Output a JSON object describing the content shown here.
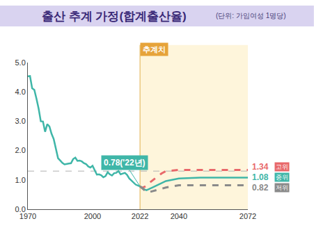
{
  "chart_data": {
    "type": "line",
    "title": "출산 추계 가정(합계출산율)",
    "subtitle": "(단위: 가임여성 1명당)",
    "xlim": [
      1970,
      2072
    ],
    "xticks": [
      1970,
      2000,
      2022,
      2040,
      2072
    ],
    "ylim": [
      0,
      5
    ],
    "yticks": [
      {
        "value": 0,
        "label": "0.0"
      },
      {
        "value": 1,
        "label": "1.0"
      },
      {
        "value": 2,
        "label": "2.0"
      },
      {
        "value": 3,
        "label": "3.0"
      },
      {
        "value": 4,
        "label": "4.0"
      },
      {
        "value": 5,
        "label": "5.0"
      }
    ],
    "grid": false,
    "projection": {
      "label": "추계치",
      "start": 2022
    },
    "reference_lines": [
      1.3
    ],
    "annotations": [
      {
        "x": 2022,
        "y": 0.78,
        "text": "0.78('22년)"
      }
    ],
    "series": [
      {
        "color": "#3fb6a8",
        "line_style": "solid",
        "x": [
          1970,
          1971,
          1972,
          1973,
          1974,
          1975,
          1976,
          1977,
          1978,
          1979,
          1980,
          1981,
          1982,
          1983,
          1984,
          1985,
          1986,
          1987,
          1988,
          1989,
          1990,
          1991,
          1992,
          1993,
          1994,
          1995,
          1996,
          1997,
          1998,
          1999,
          2000,
          2001,
          2002,
          2003,
          2004,
          2005,
          2006,
          2007,
          2008,
          2009,
          2010,
          2011,
          2012,
          2013,
          2014,
          2015,
          2016,
          2017,
          2018,
          2019,
          2020,
          2021,
          2022
        ],
        "values": [
          4.53,
          4.54,
          4.12,
          4.07,
          3.77,
          3.43,
          3.0,
          2.99,
          2.64,
          2.9,
          2.82,
          2.57,
          2.39,
          2.06,
          1.74,
          1.66,
          1.58,
          1.53,
          1.55,
          1.56,
          1.57,
          1.71,
          1.76,
          1.65,
          1.66,
          1.63,
          1.57,
          1.54,
          1.46,
          1.42,
          1.48,
          1.31,
          1.18,
          1.19,
          1.16,
          1.09,
          1.13,
          1.26,
          1.19,
          1.15,
          1.23,
          1.24,
          1.3,
          1.19,
          1.21,
          1.24,
          1.17,
          1.05,
          0.98,
          0.92,
          0.84,
          0.81,
          0.78
        ]
      },
      {
        "name": "고위",
        "end_label": "1.34",
        "color": "#e8686a",
        "line_style": "dashed",
        "x": [
          2022,
          2023,
          2024,
          2025,
          2026,
          2028,
          2030,
          2032,
          2034,
          2040,
          2050,
          2060,
          2072
        ],
        "values": [
          0.78,
          0.73,
          0.76,
          0.8,
          0.88,
          1.0,
          1.12,
          1.22,
          1.3,
          1.34,
          1.34,
          1.34,
          1.34
        ]
      },
      {
        "name": "중위",
        "end_label": "1.08",
        "color": "#3fb6a8",
        "line_style": "solid",
        "x": [
          2022,
          2023,
          2024,
          2025,
          2026,
          2028,
          2030,
          2032,
          2034,
          2040,
          2050,
          2060,
          2072
        ],
        "values": [
          0.78,
          0.72,
          0.68,
          0.65,
          0.68,
          0.75,
          0.82,
          0.9,
          0.96,
          1.05,
          1.08,
          1.08,
          1.08
        ]
      },
      {
        "name": "저위",
        "end_label": "0.82",
        "color": "#8a8a8a",
        "line_style": "dashed",
        "x": [
          2022,
          2023,
          2024,
          2025,
          2026,
          2028,
          2030,
          2032,
          2034,
          2040,
          2050,
          2060,
          2072
        ],
        "values": [
          0.78,
          0.72,
          0.64,
          0.59,
          0.58,
          0.62,
          0.66,
          0.7,
          0.74,
          0.82,
          0.82,
          0.82,
          0.82
        ]
      }
    ]
  }
}
